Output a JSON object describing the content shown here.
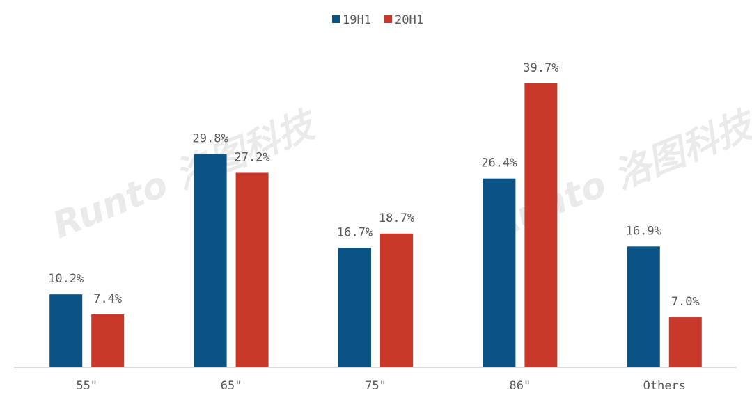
{
  "chart_data": {
    "type": "bar",
    "categories": [
      "55\"",
      "65\"",
      "75\"",
      "86\"",
      "Others"
    ],
    "series": [
      {
        "name": "19H1",
        "color": "#0b5285",
        "values": [
          10.2,
          29.8,
          16.7,
          26.4,
          16.9
        ],
        "value_labels": [
          "10.2%",
          "29.8%",
          "16.7%",
          "26.4%",
          "16.9%"
        ]
      },
      {
        "name": "20H1",
        "color": "#c9392a",
        "values": [
          7.4,
          27.2,
          18.7,
          39.7,
          7.0
        ],
        "value_labels": [
          "7.4%",
          "27.2%",
          "18.7%",
          "39.7%",
          "7.0%"
        ]
      }
    ],
    "legend": "top",
    "watermark": "Runto 洛图科技"
  }
}
